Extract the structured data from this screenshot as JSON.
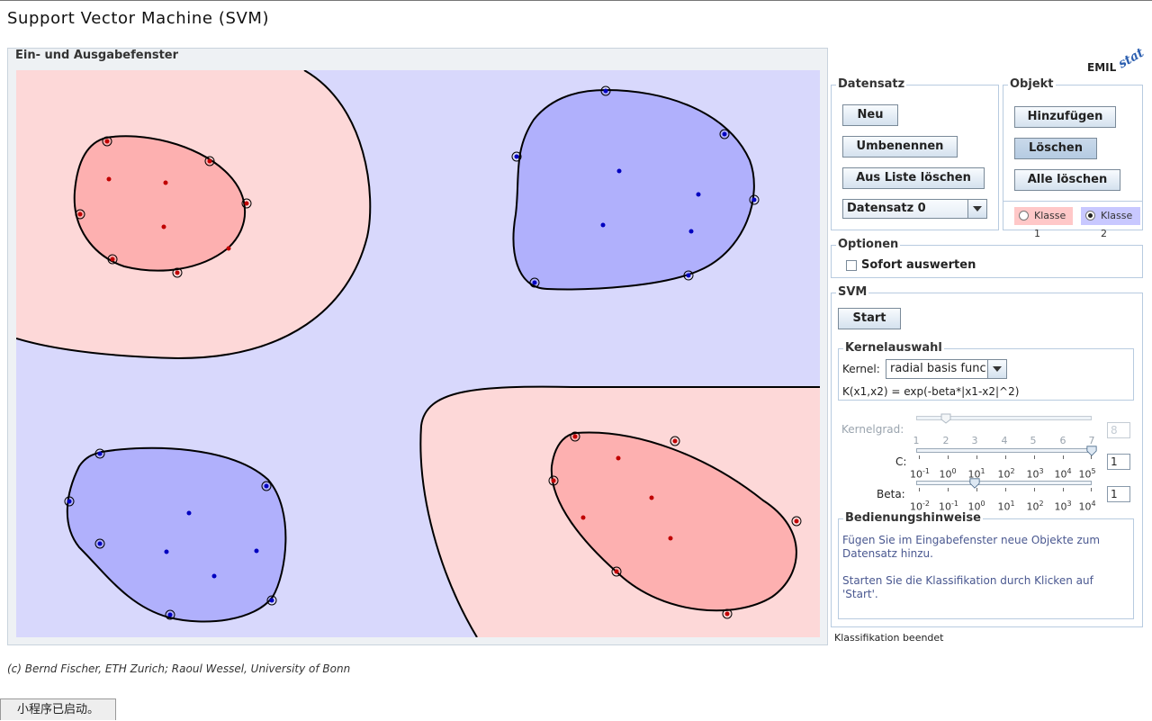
{
  "title": "Support Vector Machine (SVM)",
  "canvas_group": {
    "title": "Ein- und Ausgabefenster"
  },
  "logo": {
    "main": "EMIL",
    "overlay": "stat"
  },
  "datensatz": {
    "title": "Datensatz",
    "new_label": "Neu",
    "rename_label": "Umbenennen",
    "delete_label": "Aus Liste löschen",
    "selected": "Datensatz 0"
  },
  "objekt": {
    "title": "Objekt",
    "add_label": "Hinzufügen",
    "delete_label": "Löschen",
    "delete_all_label": "Alle löschen",
    "class1_label": "Klasse 1",
    "class2_label": "Klasse 2",
    "class1_color": "#ffc8c8",
    "class2_color": "#c8c8ff"
  },
  "optionen": {
    "title": "Optionen",
    "instant_label": "Sofort auswerten"
  },
  "svm": {
    "title": "SVM",
    "start_label": "Start",
    "kernel_group_title": "Kernelauswahl",
    "kernel_label": "Kernel:",
    "kernel_selected": "radial basis func.",
    "kernel_formula": "K(x1,x2) = exp(-beta*|x1-x2|^2)",
    "degree_label": "Kernelgrad:",
    "degree_value": "8",
    "degree_ticks": [
      "1",
      "2",
      "3",
      "4",
      "5",
      "6",
      "7"
    ],
    "c_label": "C:",
    "c_value": "1",
    "beta_label": "Beta:",
    "beta_value": "1"
  },
  "hints": {
    "title": "Bedienungshinweise",
    "line1": "Fügen Sie im Eingabefenster neue Objekte zum",
    "line2": "Datensatz hinzu.",
    "line3": "Starten Sie die Klassifikation durch Klicken auf",
    "line4": "'Start'."
  },
  "status": "Klassifikation beendet",
  "copyright": "(c) Bernd Fischer, ETH Zurich; Raoul Wessel, University of Bonn",
  "applet_status": "小程序已启动。",
  "colors": {
    "region_red": "#fdd8d8",
    "region_blue": "#d8d8fc",
    "margin_red": "#fdb0b0",
    "margin_blue": "#b0b0fc",
    "point_red": "#c00000",
    "point_blue": "#0000c0"
  }
}
